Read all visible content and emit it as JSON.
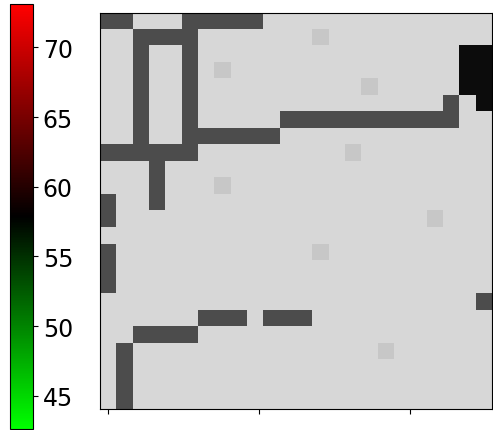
{
  "chart_data": {
    "type": "heatmap",
    "xlim": [
      -5,
      254
    ],
    "ylim": [
      254,
      -5
    ],
    "xticks": [
      0,
      100,
      200
    ],
    "yticks": [],
    "tick_labels": false,
    "cells": [
      [
        30,
        30,
        84,
        84,
        84,
        30,
        30,
        30,
        30,
        30,
        84,
        84,
        84,
        84,
        84,
        84,
        84,
        84,
        84,
        84,
        84,
        84,
        84,
        84
      ],
      [
        84,
        84,
        30,
        30,
        30,
        30,
        84,
        84,
        84,
        84,
        84,
        84,
        84,
        78,
        84,
        84,
        84,
        84,
        84,
        84,
        84,
        84,
        84,
        84
      ],
      [
        84,
        84,
        30,
        84,
        84,
        30,
        84,
        84,
        84,
        84,
        84,
        84,
        84,
        84,
        84,
        84,
        84,
        84,
        84,
        84,
        84,
        84,
        5,
        5
      ],
      [
        84,
        84,
        30,
        84,
        84,
        30,
        84,
        78,
        84,
        84,
        84,
        84,
        84,
        84,
        84,
        84,
        84,
        84,
        84,
        84,
        84,
        84,
        5,
        5
      ],
      [
        84,
        84,
        30,
        84,
        84,
        30,
        84,
        84,
        84,
        84,
        84,
        84,
        84,
        84,
        84,
        84,
        78,
        84,
        84,
        84,
        84,
        84,
        5,
        5
      ],
      [
        84,
        84,
        30,
        84,
        84,
        30,
        84,
        84,
        84,
        84,
        84,
        84,
        84,
        84,
        84,
        84,
        84,
        84,
        84,
        84,
        84,
        30,
        84,
        5
      ],
      [
        84,
        84,
        30,
        84,
        84,
        30,
        84,
        84,
        84,
        84,
        84,
        30,
        30,
        30,
        30,
        30,
        30,
        30,
        30,
        30,
        30,
        30,
        84,
        84
      ],
      [
        84,
        84,
        30,
        84,
        84,
        30,
        30,
        30,
        30,
        30,
        30,
        84,
        84,
        84,
        84,
        84,
        84,
        84,
        84,
        84,
        84,
        84,
        84,
        84
      ],
      [
        30,
        30,
        30,
        30,
        30,
        30,
        84,
        84,
        84,
        84,
        84,
        84,
        84,
        84,
        84,
        78,
        84,
        84,
        84,
        84,
        84,
        84,
        84,
        84
      ],
      [
        84,
        84,
        84,
        30,
        84,
        84,
        84,
        84,
        84,
        84,
        84,
        84,
        84,
        84,
        84,
        84,
        84,
        84,
        84,
        84,
        84,
        84,
        84,
        84
      ],
      [
        84,
        84,
        84,
        30,
        84,
        84,
        84,
        78,
        84,
        84,
        84,
        84,
        84,
        84,
        84,
        84,
        84,
        84,
        84,
        84,
        84,
        84,
        84,
        84
      ],
      [
        30,
        84,
        84,
        30,
        84,
        84,
        84,
        84,
        84,
        84,
        84,
        84,
        84,
        84,
        84,
        84,
        84,
        84,
        84,
        84,
        84,
        84,
        84,
        84
      ],
      [
        30,
        84,
        84,
        84,
        84,
        84,
        84,
        84,
        84,
        84,
        84,
        84,
        84,
        84,
        84,
        84,
        84,
        84,
        84,
        84,
        78,
        84,
        84,
        84
      ],
      [
        84,
        84,
        84,
        84,
        84,
        84,
        84,
        84,
        84,
        84,
        84,
        84,
        84,
        84,
        84,
        84,
        84,
        84,
        84,
        84,
        84,
        84,
        84,
        84
      ],
      [
        30,
        84,
        84,
        84,
        84,
        84,
        84,
        84,
        84,
        84,
        84,
        84,
        84,
        78,
        84,
        84,
        84,
        84,
        84,
        84,
        84,
        84,
        84,
        84
      ],
      [
        30,
        84,
        84,
        84,
        84,
        84,
        84,
        84,
        84,
        84,
        84,
        84,
        84,
        84,
        84,
        84,
        84,
        84,
        84,
        84,
        84,
        84,
        84,
        84
      ],
      [
        30,
        84,
        84,
        84,
        84,
        84,
        84,
        84,
        84,
        84,
        84,
        84,
        84,
        84,
        84,
        84,
        84,
        84,
        84,
        84,
        84,
        84,
        84,
        84
      ],
      [
        84,
        84,
        84,
        84,
        84,
        84,
        84,
        84,
        84,
        84,
        84,
        84,
        84,
        84,
        84,
        84,
        84,
        84,
        84,
        84,
        84,
        84,
        84,
        30
      ],
      [
        84,
        84,
        84,
        84,
        84,
        84,
        30,
        30,
        30,
        84,
        30,
        30,
        30,
        84,
        84,
        84,
        84,
        84,
        84,
        84,
        84,
        84,
        84,
        84
      ],
      [
        84,
        84,
        30,
        30,
        30,
        30,
        84,
        84,
        84,
        84,
        84,
        84,
        84,
        84,
        84,
        84,
        84,
        84,
        84,
        84,
        84,
        84,
        84,
        84
      ],
      [
        84,
        30,
        84,
        84,
        84,
        84,
        84,
        84,
        84,
        84,
        84,
        84,
        84,
        84,
        84,
        84,
        84,
        78,
        84,
        84,
        84,
        84,
        84,
        84
      ],
      [
        84,
        30,
        84,
        84,
        84,
        84,
        84,
        84,
        84,
        84,
        84,
        84,
        84,
        84,
        84,
        84,
        84,
        84,
        84,
        84,
        84,
        84,
        84,
        84
      ],
      [
        84,
        30,
        84,
        84,
        84,
        84,
        84,
        84,
        84,
        84,
        84,
        84,
        84,
        84,
        84,
        84,
        84,
        84,
        84,
        84,
        84,
        84,
        84,
        84
      ],
      [
        84,
        30,
        84,
        84,
        84,
        84,
        84,
        84,
        84,
        84,
        84,
        84,
        84,
        84,
        84,
        84,
        84,
        84,
        84,
        84,
        84,
        84,
        84,
        84
      ]
    ],
    "colorbar": {
      "range": [
        42.6,
        73.1
      ],
      "ticks": [
        45,
        50,
        55,
        60,
        65,
        70
      ],
      "colors": [
        "#00ff00",
        "#000000",
        "#ff0000"
      ]
    }
  }
}
